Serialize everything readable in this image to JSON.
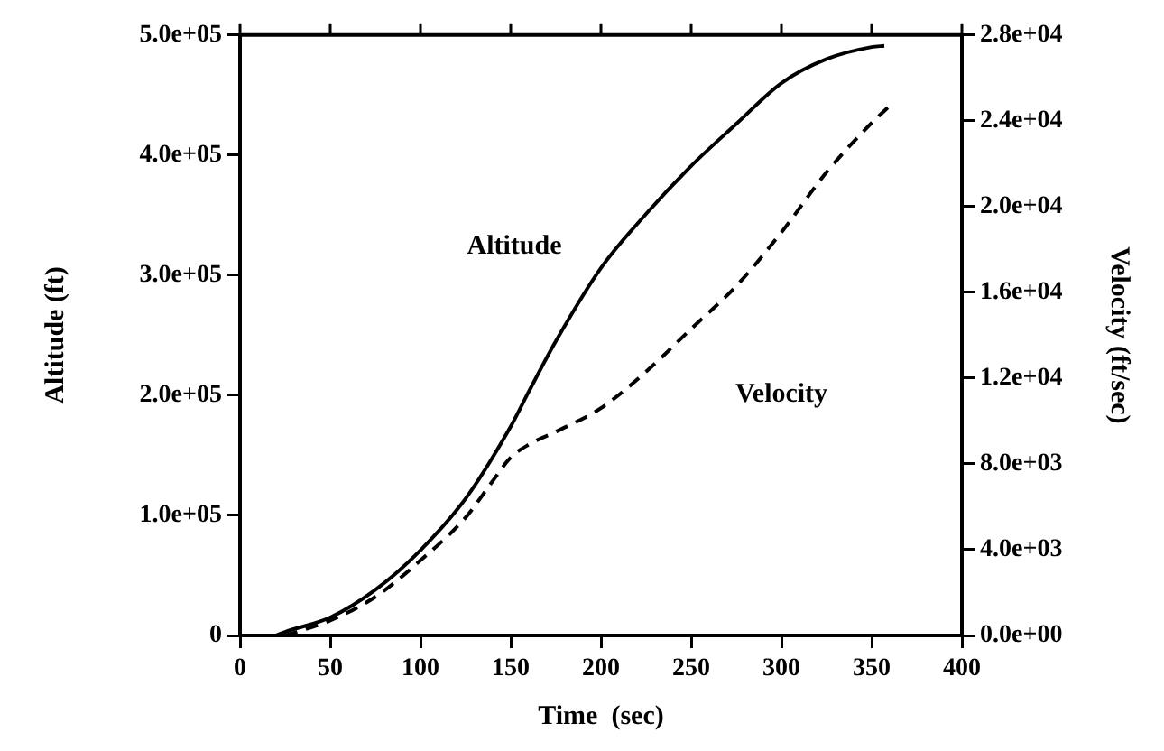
{
  "chart_data": {
    "type": "line",
    "xlabel": "Time  (sec)",
    "ylabel": "Altitude (ft)",
    "y2label": "Velocity (ft/sec)",
    "xlim": [
      0,
      400
    ],
    "xticks": [
      0,
      50,
      100,
      150,
      200,
      250,
      300,
      350,
      400
    ],
    "ylim": [
      0,
      500000
    ],
    "yticks": [
      0,
      {
        "value": 100000,
        "label": "1.0e+05"
      },
      {
        "value": 200000,
        "label": "2.0e+05"
      },
      {
        "value": 300000,
        "label": "3.0e+05"
      },
      {
        "value": 400000,
        "label": "4.0e+05"
      },
      {
        "value": 500000,
        "label": "5.0e+05"
      }
    ],
    "y2lim": [
      0,
      28000
    ],
    "y2ticks": [
      {
        "value": 0,
        "label": "0.0e+00"
      },
      {
        "value": 4000,
        "label": "4.0e+03"
      },
      {
        "value": 8000,
        "label": "8.0e+03"
      },
      {
        "value": 12000,
        "label": "1.2e+04"
      },
      {
        "value": 16000,
        "label": "1.6e+04"
      },
      {
        "value": 20000,
        "label": "2.0e+04"
      },
      {
        "value": 24000,
        "label": "2.4e+04"
      },
      {
        "value": 28000,
        "label": "2.8e+04"
      }
    ],
    "grid": false,
    "legend": false,
    "marker": "none",
    "series": [
      {
        "name": "Altitude",
        "color": "#000000",
        "line_style": "solid",
        "x": [
          20,
          25,
          50,
          75,
          100,
          125,
          150,
          160,
          175,
          200,
          225,
          250,
          275,
          300,
          325,
          350,
          357
        ],
        "values": [
          0,
          3000,
          15000,
          38000,
          71000,
          114000,
          174000,
          203000,
          245000,
          306000,
          351000,
          391000,
          426000,
          460000,
          480000,
          490000,
          491000
        ]
      },
      {
        "name": "Velocity",
        "color": "#000000",
        "line_style": "dashed",
        "axis": "y2",
        "x": [
          25,
          50,
          75,
          100,
          125,
          140,
          150,
          160,
          175,
          200,
          225,
          250,
          275,
          300,
          325,
          350,
          360
        ],
        "values": [
          0,
          700,
          1800,
          3500,
          5500,
          7200,
          8300,
          8900,
          9500,
          10600,
          12300,
          14300,
          16300,
          18800,
          21600,
          23900,
          24700
        ]
      }
    ]
  }
}
